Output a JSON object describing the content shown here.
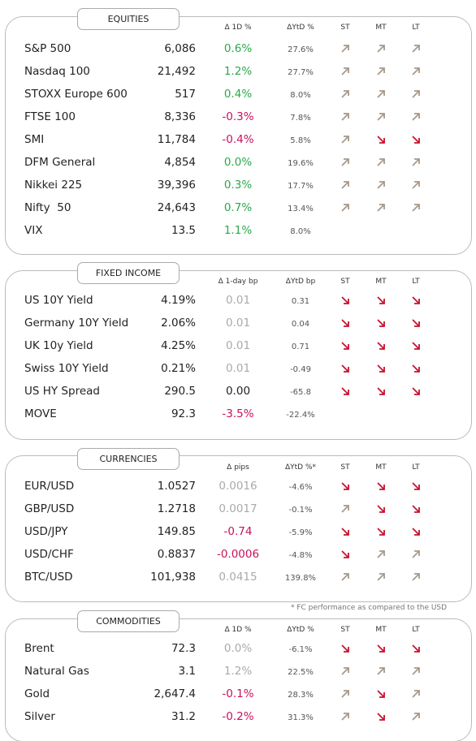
{
  "footnote": "* FC performance as compared to the USD",
  "sections": [
    {
      "title": "EQUITIES",
      "columns": [
        "Δ 1D %",
        "ΔYtD %",
        "ST",
        "MT",
        "LT"
      ],
      "rows": [
        {
          "name": "S&P 500",
          "value": "6,086",
          "change": "0.6%",
          "change_color": "green",
          "ytd": "27.6%",
          "trend": [
            "up",
            "up",
            "up"
          ]
        },
        {
          "name": "Nasdaq 100",
          "value": "21,492",
          "change": "1.2%",
          "change_color": "green",
          "ytd": "27.7%",
          "trend": [
            "up",
            "up",
            "up"
          ]
        },
        {
          "name": "STOXX Europe 600",
          "value": "517",
          "change": "0.4%",
          "change_color": "green",
          "ytd": "8.0%",
          "trend": [
            "up",
            "up",
            "up"
          ]
        },
        {
          "name": "FTSE 100",
          "value": "8,336",
          "change": "-0.3%",
          "change_color": "red",
          "ytd": "7.8%",
          "trend": [
            "up",
            "up",
            "up"
          ]
        },
        {
          "name": "SMI",
          "value": "11,784",
          "change": "-0.4%",
          "change_color": "red",
          "ytd": "5.8%",
          "trend": [
            "up",
            "down",
            "down"
          ]
        },
        {
          "name": "DFM General",
          "value": "4,854",
          "change": "0.0%",
          "change_color": "green",
          "ytd": "19.6%",
          "trend": [
            "up",
            "up",
            "up"
          ]
        },
        {
          "name": "Nikkei 225",
          "value": "39,396",
          "change": "0.3%",
          "change_color": "green",
          "ytd": "17.7%",
          "trend": [
            "up",
            "up",
            "up"
          ]
        },
        {
          "name": "Nifty  50",
          "value": "24,643",
          "change": "0.7%",
          "change_color": "green",
          "ytd": "13.4%",
          "trend": [
            "up",
            "up",
            "up"
          ]
        },
        {
          "name": "VIX",
          "value": "13.5",
          "change": "1.1%",
          "change_color": "green",
          "ytd": "8.0%",
          "trend": [
            null,
            null,
            null
          ]
        }
      ]
    },
    {
      "title": "FIXED INCOME",
      "columns": [
        "Δ 1-day bp",
        "ΔYtD bp",
        "ST",
        "MT",
        "LT"
      ],
      "rows": [
        {
          "name": "US 10Y Yield",
          "value": "4.19%",
          "change": "0.01",
          "change_color": "gray",
          "ytd": "0.31",
          "trend": [
            "down",
            "down",
            "down"
          ]
        },
        {
          "name": "Germany 10Y Yield",
          "value": "2.06%",
          "change": "0.01",
          "change_color": "gray",
          "ytd": "0.04",
          "trend": [
            "down",
            "down",
            "down"
          ]
        },
        {
          "name": "UK 10y Yield",
          "value": "4.25%",
          "change": "0.01",
          "change_color": "gray",
          "ytd": "0.71",
          "trend": [
            "down",
            "down",
            "down"
          ]
        },
        {
          "name": "Swiss 10Y Yield",
          "value": "0.21%",
          "change": "0.01",
          "change_color": "gray",
          "ytd": "-0.49",
          "trend": [
            "down",
            "down",
            "down"
          ]
        },
        {
          "name": "US HY Spread",
          "value": "290.5",
          "change": "0.00",
          "change_color": "black",
          "ytd": "-65.8",
          "trend": [
            "down",
            "down",
            "down"
          ]
        },
        {
          "name": "MOVE",
          "value": "92.3",
          "change": "-3.5%",
          "change_color": "red",
          "ytd": "-22.4%",
          "trend": [
            null,
            null,
            null
          ]
        }
      ]
    },
    {
      "title": "CURRENCIES",
      "columns": [
        "Δ pips",
        "ΔYtD %*",
        "ST",
        "MT",
        "LT"
      ],
      "rows": [
        {
          "name": "EUR/USD",
          "value": "1.0527",
          "change": "0.0016",
          "change_color": "gray",
          "ytd": "-4.6%",
          "trend": [
            "down",
            "down",
            "down"
          ]
        },
        {
          "name": "GBP/USD",
          "value": "1.2718",
          "change": "0.0017",
          "change_color": "gray",
          "ytd": "-0.1%",
          "trend": [
            "up",
            "down",
            "down"
          ]
        },
        {
          "name": "USD/JPY",
          "value": "149.85",
          "change": "-0.74",
          "change_color": "red",
          "ytd": "-5.9%",
          "trend": [
            "down",
            "down",
            "down"
          ]
        },
        {
          "name": "USD/CHF",
          "value": "0.8837",
          "change": "-0.0006",
          "change_color": "red",
          "ytd": "-4.8%",
          "trend": [
            "down",
            "up",
            "up"
          ]
        },
        {
          "name": "BTC/USD",
          "value": "101,938",
          "change": "0.0415",
          "change_color": "gray",
          "ytd": "139.8%",
          "trend": [
            "up",
            "up",
            "up"
          ]
        }
      ]
    },
    {
      "title": "COMMODITIES",
      "columns": [
        "Δ 1D %",
        "ΔYtD %",
        "ST",
        "MT",
        "LT"
      ],
      "rows": [
        {
          "name": "Brent",
          "value": "72.3",
          "change": "0.0%",
          "change_color": "gray",
          "ytd": "-6.1%",
          "trend": [
            "down",
            "down",
            "down"
          ]
        },
        {
          "name": "Natural Gas",
          "value": "3.1",
          "change": "1.2%",
          "change_color": "gray",
          "ytd": "22.5%",
          "trend": [
            "up",
            "up",
            "up"
          ]
        },
        {
          "name": "Gold",
          "value": "2,647.4",
          "change": "-0.1%",
          "change_color": "red",
          "ytd": "28.3%",
          "trend": [
            "up",
            "down",
            "up"
          ]
        },
        {
          "name": "Silver",
          "value": "31.2",
          "change": "-0.2%",
          "change_color": "red",
          "ytd": "31.3%",
          "trend": [
            "up",
            "down",
            "up"
          ]
        }
      ]
    }
  ]
}
